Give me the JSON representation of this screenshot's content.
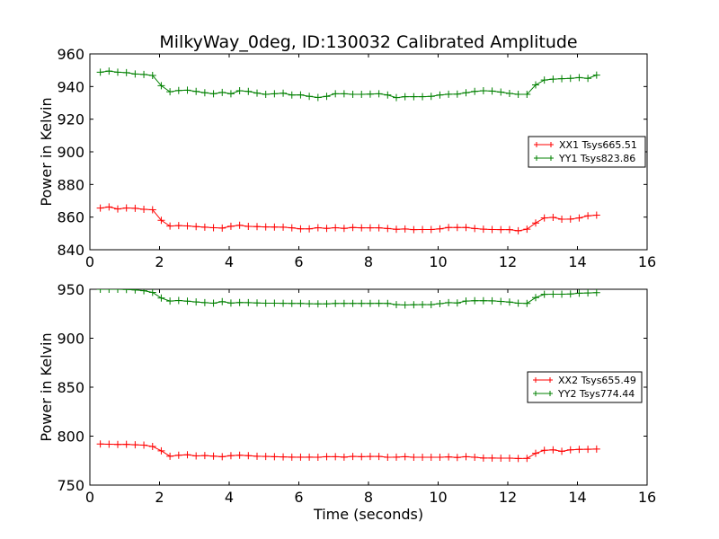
{
  "title": "MilkyWay_0deg, ID:130032 Calibrated Amplitude",
  "chart_data": [
    {
      "type": "line",
      "ylabel": "Power in Kelvin",
      "xlabel": "",
      "xlim": [
        0,
        16
      ],
      "ylim": [
        840,
        960
      ],
      "xticks": [
        "0",
        "2",
        "4",
        "6",
        "8",
        "10",
        "12",
        "14",
        "16"
      ],
      "yticks": [
        "840",
        "860",
        "880",
        "900",
        "920",
        "940",
        "960"
      ],
      "legend_position": "right",
      "x": [
        0.3,
        0.55,
        0.8,
        1.05,
        1.3,
        1.55,
        1.8,
        2.05,
        2.3,
        2.55,
        2.8,
        3.05,
        3.3,
        3.55,
        3.8,
        4.05,
        4.3,
        4.55,
        4.8,
        5.05,
        5.3,
        5.55,
        5.8,
        6.05,
        6.3,
        6.55,
        6.8,
        7.05,
        7.3,
        7.55,
        7.8,
        8.05,
        8.3,
        8.55,
        8.8,
        9.05,
        9.3,
        9.55,
        9.8,
        10.05,
        10.3,
        10.55,
        10.8,
        11.05,
        11.3,
        11.55,
        11.8,
        12.05,
        12.3,
        12.55,
        12.8,
        13.05,
        13.3,
        13.55,
        13.8,
        14.05,
        14.3,
        14.55
      ],
      "series": [
        {
          "name": "XX1 Tsys665.51",
          "color": "#ff0000",
          "values": [
            865.5,
            866.2,
            865.0,
            865.6,
            865.4,
            864.8,
            864.5,
            858.0,
            854.5,
            854.8,
            854.6,
            854.2,
            853.8,
            853.5,
            853.3,
            854.4,
            855.0,
            854.3,
            854.2,
            854.0,
            853.9,
            853.8,
            853.4,
            852.8,
            852.8,
            853.5,
            853.1,
            853.5,
            853.1,
            853.6,
            853.4,
            853.4,
            853.4,
            853.0,
            852.5,
            852.7,
            852.3,
            852.4,
            852.4,
            852.8,
            853.6,
            853.6,
            853.6,
            853.0,
            852.6,
            852.4,
            852.3,
            852.3,
            851.6,
            852.6,
            856.4,
            859.5,
            859.8,
            858.7,
            858.8,
            859.5,
            860.8,
            861.2
          ]
        },
        {
          "name": "YY1 Tsys823.86",
          "color": "#008000",
          "values": [
            948.8,
            949.5,
            948.8,
            948.5,
            947.7,
            947.4,
            946.8,
            940.5,
            936.8,
            937.6,
            937.8,
            937.0,
            936.2,
            935.6,
            936.4,
            935.6,
            937.4,
            937.0,
            936.0,
            935.2,
            935.6,
            935.9,
            934.8,
            934.9,
            934.0,
            933.3,
            934.0,
            935.6,
            935.6,
            935.2,
            935.2,
            935.4,
            935.6,
            934.8,
            933.2,
            933.8,
            933.8,
            933.8,
            934.0,
            934.8,
            935.3,
            935.4,
            936.2,
            937.0,
            937.4,
            937.2,
            936.6,
            935.8,
            935.2,
            935.2,
            941.0,
            944.0,
            944.5,
            944.8,
            945.0,
            945.5,
            945.0,
            947.0
          ]
        }
      ]
    },
    {
      "type": "line",
      "ylabel": "Power in Kelvin",
      "xlabel": "Time (seconds)",
      "xlim": [
        0,
        16
      ],
      "ylim": [
        750,
        950
      ],
      "xticks": [
        "0",
        "2",
        "4",
        "6",
        "8",
        "10",
        "12",
        "14",
        "16"
      ],
      "yticks": [
        "750",
        "800",
        "850",
        "900",
        "950"
      ],
      "legend_position": "right",
      "x": [
        0.3,
        0.55,
        0.8,
        1.05,
        1.3,
        1.55,
        1.8,
        2.05,
        2.3,
        2.55,
        2.8,
        3.05,
        3.3,
        3.55,
        3.8,
        4.05,
        4.3,
        4.55,
        4.8,
        5.05,
        5.3,
        5.55,
        5.8,
        6.05,
        6.3,
        6.55,
        6.8,
        7.05,
        7.3,
        7.55,
        7.8,
        8.05,
        8.3,
        8.55,
        8.8,
        9.05,
        9.3,
        9.55,
        9.8,
        10.05,
        10.3,
        10.55,
        10.8,
        11.05,
        11.3,
        11.55,
        11.8,
        12.05,
        12.3,
        12.55,
        12.8,
        13.05,
        13.3,
        13.55,
        13.8,
        14.05,
        14.3,
        14.55
      ],
      "series": [
        {
          "name": "XX2 Tsys655.49",
          "color": "#ff0000",
          "values": [
            792.0,
            791.8,
            791.5,
            791.6,
            791.2,
            790.8,
            789.5,
            785.0,
            779.5,
            780.5,
            781.0,
            779.8,
            780.2,
            779.6,
            779.0,
            780.0,
            780.5,
            780.0,
            779.5,
            779.3,
            779.0,
            778.8,
            778.6,
            778.5,
            778.6,
            778.4,
            779.0,
            779.0,
            778.6,
            779.3,
            779.0,
            779.2,
            779.3,
            778.4,
            778.6,
            779.0,
            778.4,
            778.4,
            778.4,
            778.4,
            778.8,
            778.2,
            779.0,
            778.4,
            777.6,
            777.6,
            777.5,
            777.5,
            777.2,
            777.3,
            782.5,
            785.5,
            786.0,
            784.5,
            786.0,
            786.5,
            786.6,
            786.8
          ]
        },
        {
          "name": "YY2 Tsys774.44",
          "color": "#008000",
          "values": [
            950.0,
            950.0,
            950.0,
            949.8,
            949.3,
            948.5,
            946.8,
            941.0,
            938.0,
            938.5,
            937.8,
            937.0,
            936.3,
            935.8,
            937.4,
            935.9,
            936.5,
            936.3,
            936.0,
            935.8,
            935.8,
            935.7,
            935.6,
            935.5,
            935.2,
            935.1,
            935.1,
            935.6,
            935.6,
            935.6,
            935.6,
            935.6,
            935.7,
            935.6,
            934.3,
            934.0,
            934.2,
            934.3,
            934.3,
            935.3,
            936.4,
            936.0,
            938.0,
            938.3,
            938.3,
            938.2,
            937.6,
            936.9,
            935.8,
            935.6,
            941.5,
            944.8,
            945.0,
            945.0,
            945.2,
            946.0,
            946.2,
            946.6
          ]
        }
      ]
    }
  ]
}
